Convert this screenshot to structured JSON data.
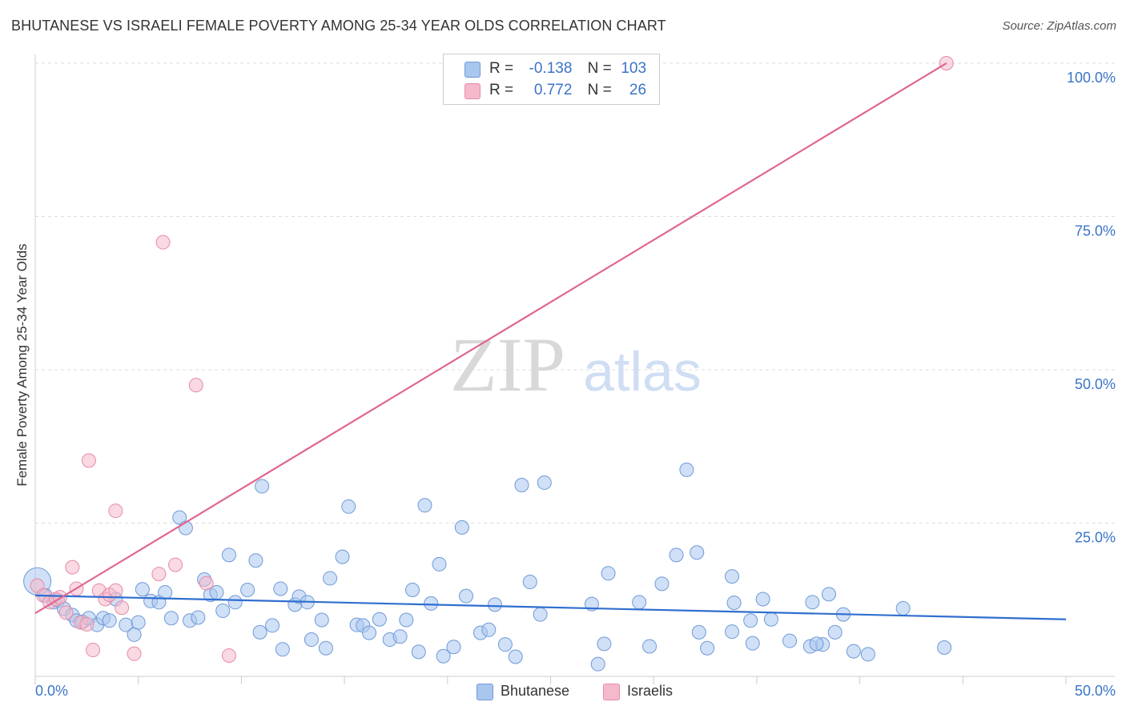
{
  "header": {
    "title": "BHUTANESE VS ISRAELI FEMALE POVERTY AMONG 25-34 YEAR OLDS CORRELATION CHART",
    "source": "Source: ZipAtlas.com"
  },
  "watermark": {
    "zip": "ZIP",
    "atlas": "atlas"
  },
  "stats": [
    {
      "r_label": "R =",
      "r_value": "-0.138",
      "n_label": "N =",
      "n_value": "103",
      "color": "#a9c6ee"
    },
    {
      "r_label": "R =",
      "r_value": "0.772",
      "n_label": "N =",
      "n_value": "26",
      "color": "#f4b9cb"
    }
  ],
  "legend": [
    {
      "label": "Bhutanese",
      "color": "#a9c6ee"
    },
    {
      "label": "Israelis",
      "color": "#f4b9cb"
    }
  ],
  "chart_data": {
    "type": "scatter",
    "title": "BHUTANESE VS ISRAELI FEMALE POVERTY AMONG 25-34 YEAR OLDS CORRELATION CHART",
    "xlabel": "",
    "ylabel": "Female Poverty Among 25-34 Year Olds",
    "xlim": [
      0,
      50
    ],
    "ylim": [
      0,
      100
    ],
    "x_tick_labels": [
      {
        "value": 0,
        "label": "0.0%"
      },
      {
        "value": 50,
        "label": "50.0%"
      }
    ],
    "y_tick_labels": [
      {
        "value": 25,
        "label": "25.0%"
      },
      {
        "value": 50,
        "label": "50.0%"
      },
      {
        "value": 75,
        "label": "75.0%"
      },
      {
        "value": 100,
        "label": "100.0%"
      }
    ],
    "grid": "horizontal dashed",
    "legend_position": "bottom-center",
    "series": [
      {
        "name": "Bhutanese",
        "color": "#a9c6ee",
        "stroke": "#6f9ad8",
        "line_color": "#2f6fcf",
        "trend": {
          "x": [
            0,
            50
          ],
          "y": [
            13.2,
            9.3
          ]
        },
        "points": [
          [
            0.1,
            15.5
          ],
          [
            0.5,
            13.2
          ],
          [
            0.9,
            12.1
          ],
          [
            1.1,
            12.4
          ],
          [
            1.4,
            11.0
          ],
          [
            1.8,
            10.0
          ],
          [
            2.0,
            9.1
          ],
          [
            2.3,
            8.9
          ],
          [
            2.6,
            9.5
          ],
          [
            3.0,
            8.4
          ],
          [
            3.3,
            9.5
          ],
          [
            3.6,
            9.1
          ],
          [
            3.9,
            12.6
          ],
          [
            4.4,
            8.4
          ],
          [
            4.8,
            6.8
          ],
          [
            5.0,
            8.8
          ],
          [
            5.2,
            14.2
          ],
          [
            5.6,
            12.3
          ],
          [
            6.0,
            12.1
          ],
          [
            6.3,
            13.7
          ],
          [
            6.6,
            9.5
          ],
          [
            7.0,
            25.9
          ],
          [
            7.3,
            24.2
          ],
          [
            7.5,
            9.1
          ],
          [
            7.9,
            9.6
          ],
          [
            8.2,
            15.8
          ],
          [
            8.5,
            13.3
          ],
          [
            8.8,
            13.7
          ],
          [
            9.1,
            10.7
          ],
          [
            9.4,
            19.8
          ],
          [
            9.7,
            12.1
          ],
          [
            10.3,
            14.1
          ],
          [
            10.7,
            18.9
          ],
          [
            10.9,
            7.2
          ],
          [
            11.0,
            31.0
          ],
          [
            11.5,
            8.3
          ],
          [
            11.9,
            14.3
          ],
          [
            12.0,
            4.4
          ],
          [
            12.6,
            11.7
          ],
          [
            12.8,
            13.0
          ],
          [
            13.2,
            12.1
          ],
          [
            13.4,
            6.0
          ],
          [
            13.9,
            9.2
          ],
          [
            14.1,
            4.6
          ],
          [
            14.3,
            16.0
          ],
          [
            14.9,
            19.5
          ],
          [
            15.2,
            27.7
          ],
          [
            15.6,
            8.4
          ],
          [
            15.9,
            8.3
          ],
          [
            16.2,
            7.1
          ],
          [
            16.7,
            9.3
          ],
          [
            17.2,
            6.0
          ],
          [
            17.7,
            6.5
          ],
          [
            18.0,
            9.2
          ],
          [
            18.3,
            14.1
          ],
          [
            18.6,
            4.0
          ],
          [
            18.9,
            27.9
          ],
          [
            19.2,
            11.9
          ],
          [
            19.6,
            18.3
          ],
          [
            19.8,
            3.3
          ],
          [
            20.3,
            4.8
          ],
          [
            20.7,
            24.3
          ],
          [
            20.9,
            13.1
          ],
          [
            21.6,
            7.1
          ],
          [
            22.0,
            7.6
          ],
          [
            22.3,
            11.7
          ],
          [
            22.8,
            5.2
          ],
          [
            23.3,
            3.2
          ],
          [
            23.6,
            31.2
          ],
          [
            24.0,
            15.4
          ],
          [
            24.5,
            10.1
          ],
          [
            24.7,
            31.6
          ],
          [
            27.3,
            2.0
          ],
          [
            27.0,
            11.8
          ],
          [
            27.6,
            5.3
          ],
          [
            27.8,
            16.8
          ],
          [
            29.3,
            12.1
          ],
          [
            29.8,
            4.9
          ],
          [
            30.4,
            15.1
          ],
          [
            31.1,
            19.8
          ],
          [
            31.6,
            33.7
          ],
          [
            32.2,
            7.2
          ],
          [
            32.6,
            4.6
          ],
          [
            32.1,
            20.2
          ],
          [
            33.8,
            16.3
          ],
          [
            33.9,
            12.0
          ],
          [
            33.8,
            7.3
          ],
          [
            34.8,
            5.4
          ],
          [
            35.3,
            12.6
          ],
          [
            34.7,
            9.1
          ],
          [
            35.7,
            9.3
          ],
          [
            36.6,
            5.8
          ],
          [
            37.6,
            4.9
          ],
          [
            37.7,
            12.1
          ],
          [
            38.2,
            5.2
          ],
          [
            37.9,
            5.3
          ],
          [
            38.5,
            13.4
          ],
          [
            38.8,
            7.2
          ],
          [
            39.2,
            10.1
          ],
          [
            39.7,
            4.1
          ],
          [
            40.4,
            3.6
          ],
          [
            42.1,
            11.1
          ],
          [
            44.1,
            4.7
          ]
        ]
      },
      {
        "name": "Israelis",
        "color": "#f4b9cb",
        "stroke": "#e88aa8",
        "line_color": "#e0668f",
        "trend": {
          "x": [
            0,
            44.2
          ],
          "y": [
            10.3,
            100
          ]
        },
        "points": [
          [
            0.1,
            14.8
          ],
          [
            0.4,
            13.2
          ],
          [
            0.7,
            12.1
          ],
          [
            1.0,
            12.6
          ],
          [
            1.5,
            10.4
          ],
          [
            1.8,
            17.8
          ],
          [
            2.0,
            14.3
          ],
          [
            2.2,
            8.8
          ],
          [
            2.5,
            8.5
          ],
          [
            2.8,
            4.3
          ],
          [
            3.1,
            14.0
          ],
          [
            3.4,
            12.6
          ],
          [
            3.6,
            13.3
          ],
          [
            3.9,
            14.0
          ],
          [
            4.2,
            11.2
          ],
          [
            2.6,
            35.2
          ],
          [
            3.9,
            27.0
          ],
          [
            6.0,
            16.7
          ],
          [
            6.2,
            70.8
          ],
          [
            6.8,
            18.2
          ],
          [
            7.8,
            47.5
          ],
          [
            8.3,
            15.2
          ],
          [
            9.4,
            3.4
          ],
          [
            4.8,
            3.7
          ],
          [
            44.2,
            100.0
          ],
          [
            1.2,
            12.9
          ]
        ]
      }
    ]
  }
}
